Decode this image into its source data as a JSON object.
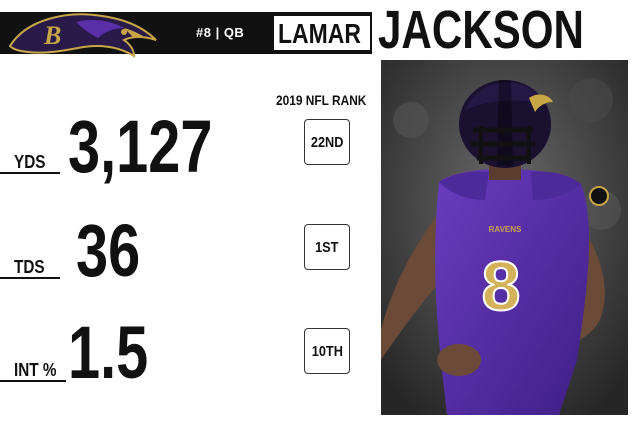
{
  "header": {
    "jersey_info": "#8 | QB",
    "first_name": "LAMAR",
    "last_name": "JACKSON"
  },
  "rank_header": "2019 NFL RANK",
  "stats": [
    {
      "label": "YDS",
      "value": "3,127",
      "rank": "22ND"
    },
    {
      "label": "TDS",
      "value": "36",
      "rank": "1ST"
    },
    {
      "label": "INT %",
      "value": "1.5",
      "rank": "10TH"
    }
  ],
  "photo": {
    "jersey_number": "8",
    "jersey_wordmark": "RAVENS"
  },
  "colors": {
    "header_bar": "#111111",
    "ravens_purple": "#5a2ea6",
    "ravens_gold": "#c8a646"
  },
  "icons": [
    "ravens-logo-icon"
  ]
}
